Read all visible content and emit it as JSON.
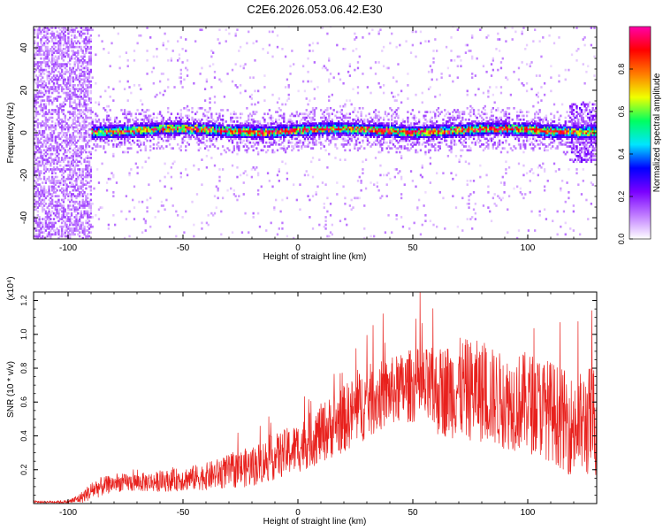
{
  "title": "C2E6.2026.053.06.42.E30",
  "chart_data": [
    {
      "type": "heatmap",
      "name": "spectrogram",
      "xlabel": "Height of straight line (km)",
      "ylabel": "Frequency (Hz)",
      "xlim": [
        -115,
        130
      ],
      "ylim": [
        -50,
        50
      ],
      "xticks": [
        -100,
        -50,
        0,
        50,
        100
      ],
      "xtick_labels": [
        "-100",
        "-50",
        "0",
        "50",
        "100"
      ],
      "yticks": [
        -40,
        -20,
        0,
        20,
        40
      ],
      "ytick_labels": [
        "-40",
        "-20",
        "0",
        "20",
        "40"
      ],
      "colorbar": {
        "label": "Normalized spectral amplitude",
        "range": [
          0,
          1
        ],
        "ticks": [
          0.0,
          0.2,
          0.4,
          0.6,
          0.8
        ],
        "tick_labels": [
          "0.0",
          "0.2",
          "0.4",
          "0.6",
          "0.8"
        ],
        "colors": [
          "#ffffff",
          "#c07cff",
          "#7a00ff",
          "#0000ff",
          "#00e5ff",
          "#00ff60",
          "#f0ff00",
          "#ff7a00",
          "#ff0000",
          "#ff00aa"
        ]
      },
      "features": {
        "noise_region_x": [
          -115,
          -90
        ],
        "noise_region_freq": [
          -50,
          50
        ],
        "ridge_freq": 0.8,
        "ridge_halfwidth": 3,
        "wing_halfwidth": 10
      }
    },
    {
      "type": "line",
      "name": "snr",
      "xlabel": "Height of straight line (km)",
      "ylabel": "SNR (10 * v/v)",
      "scale_label": "(x10⁴)",
      "xlim": [
        -115,
        130
      ],
      "ylim": [
        0,
        1.25
      ],
      "xticks": [
        -100,
        -50,
        0,
        50,
        100
      ],
      "xtick_labels": [
        "-100",
        "-50",
        "0",
        "50",
        "100"
      ],
      "yticks": [
        0.2,
        0.4,
        0.6,
        0.8,
        1.0,
        1.2
      ],
      "ytick_labels": [
        "0.2",
        "0.4",
        "0.6",
        "0.8",
        "1.0",
        "1.2"
      ],
      "color": "#e8201c",
      "envelope": {
        "x": [
          -115,
          -100,
          -95,
          -88,
          -80,
          -60,
          -40,
          -20,
          0,
          20,
          30,
          40,
          50,
          60,
          70,
          80,
          90,
          100,
          110,
          120,
          130
        ],
        "mean": [
          0.01,
          0.01,
          0.03,
          0.09,
          0.12,
          0.13,
          0.16,
          0.22,
          0.33,
          0.5,
          0.6,
          0.66,
          0.7,
          0.66,
          0.68,
          0.66,
          0.6,
          0.6,
          0.55,
          0.45,
          0.5
        ],
        "spread": [
          0.005,
          0.01,
          0.03,
          0.06,
          0.05,
          0.06,
          0.08,
          0.12,
          0.15,
          0.2,
          0.22,
          0.2,
          0.22,
          0.26,
          0.3,
          0.3,
          0.28,
          0.3,
          0.3,
          0.3,
          0.35
        ]
      }
    }
  ]
}
